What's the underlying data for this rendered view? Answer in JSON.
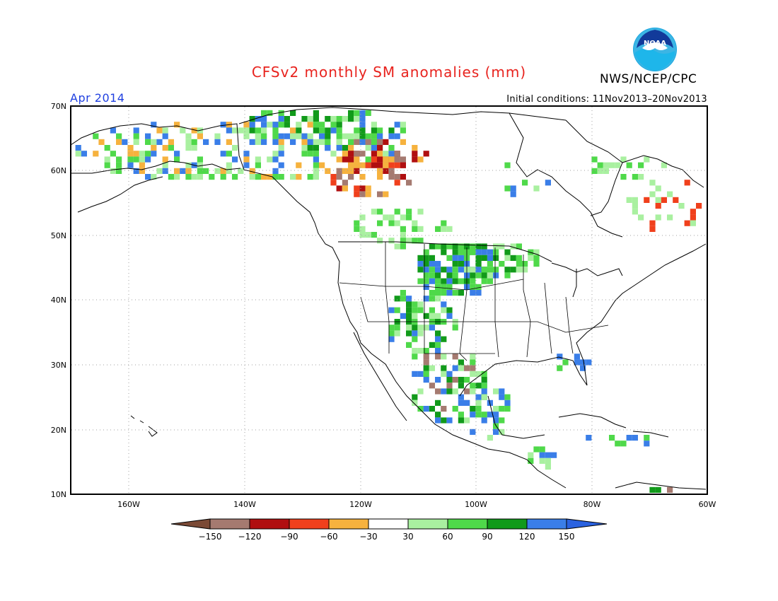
{
  "title": "CFSv2 monthly SM anomalies (mm)",
  "organization": "NWS/NCEP/CPC",
  "logo_text": "NOAA",
  "valid_month": "Apr 2014",
  "initial_conditions": "Initial conditions: 11Nov2013–20Nov2013",
  "lat_labels": [
    "70N",
    "60N",
    "50N",
    "40N",
    "30N",
    "20N",
    "10N"
  ],
  "lon_labels": [
    "160W",
    "140W",
    "120W",
    "100W",
    "80W",
    "60W"
  ],
  "colorbar": {
    "labels": [
      "−150",
      "−120",
      "−90",
      "−60",
      "−30",
      "30",
      "60",
      "90",
      "120",
      "150"
    ],
    "colors": [
      "#7b4a36",
      "#a57a70",
      "#b00f10",
      "#f0401c",
      "#f6b23e",
      "#ffffff",
      "#a9f0a0",
      "#4fd94a",
      "#119a1a",
      "#3a7ee8",
      "#2a62e0"
    ]
  },
  "colors": {
    "title": "#e8231e",
    "month": "#2040e0",
    "grid": "#a0a0a0"
  }
}
